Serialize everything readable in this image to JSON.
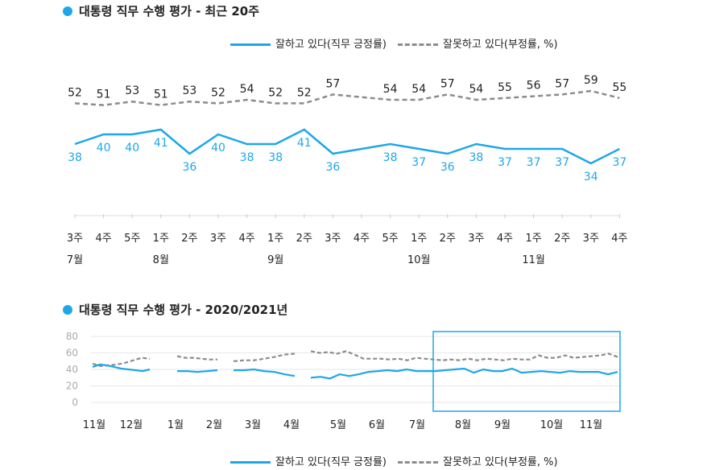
{
  "colors": {
    "approve": "#1ea7e8",
    "disapprove": "#8c8c8c",
    "highlight": "#1ea7e8",
    "grid": "#dddddd"
  },
  "chart_data": [
    {
      "type": "line",
      "title": "대통령 직무 수행 평가 - 최근 20주",
      "legend": {
        "approve": "잘하고 있다(직무 긍정률)",
        "disapprove": "잘못하고 있다(부정률, %)"
      },
      "categories": [
        "3주",
        "4주",
        "5주",
        "1주",
        "2주",
        "3주",
        "4주",
        "1주",
        "2주",
        "3주",
        "4주",
        "5주",
        "1주",
        "2주",
        "3주",
        "4주",
        "1주",
        "2주",
        "3주",
        "4주"
      ],
      "months": [
        {
          "label": "7월",
          "index": 0
        },
        {
          "label": "8월",
          "index": 3
        },
        {
          "label": "9월",
          "index": 7
        },
        {
          "label": "10월",
          "index": 12
        },
        {
          "label": "11월",
          "index": 16
        }
      ],
      "series": [
        {
          "name": "잘하고 있다(직무 긍정률)",
          "values": [
            38,
            40,
            40,
            41,
            36,
            40,
            38,
            38,
            41,
            36,
            null,
            38,
            37,
            36,
            38,
            37,
            37,
            37,
            34,
            37
          ]
        },
        {
          "name": "잘못하고 있다(부정률, %)",
          "values": [
            52,
            51,
            53,
            51,
            53,
            52,
            54,
            52,
            52,
            57,
            null,
            54,
            54,
            57,
            54,
            55,
            56,
            57,
            59,
            55
          ]
        }
      ]
    },
    {
      "type": "line",
      "title": "대통령 직무 수행 평가 - 2020/2021년",
      "legend": {
        "approve": "잘하고 있다(직무 긍정률)",
        "disapprove": "잘못하고 있다(부정률, %)"
      },
      "ylim": [
        0,
        80
      ],
      "yticks": [
        0,
        20,
        40,
        60,
        80
      ],
      "months": [
        "11월",
        "12월",
        "1월",
        "2월",
        "3월",
        "4월",
        "5월",
        "6월",
        "7월",
        "8월",
        "9월",
        "10월",
        "11월"
      ],
      "series": [
        {
          "name": "잘하고 있다(직무 긍정률)",
          "segments": [
            [
              43,
              46,
              45,
              43,
              41,
              40,
              39,
              38,
              40
            ],
            [
              38,
              38,
              37,
              38,
              39
            ],
            [
              39,
              39,
              40,
              38,
              37,
              34,
              32
            ],
            [
              30,
              31,
              29,
              34,
              32,
              34,
              37,
              38,
              39,
              38,
              40,
              38,
              38,
              38,
              39,
              40,
              41,
              36,
              40,
              38,
              38,
              41,
              36,
              37,
              38,
              37,
              36,
              38,
              37,
              37,
              37,
              34,
              37
            ]
          ]
        },
        {
          "name": "잘못하고 있다(부정률, %)",
          "segments": [
            [
              47,
              44,
              45,
              46,
              48,
              51,
              54,
              53
            ],
            [
              56,
              54,
              54,
              53,
              52,
              52
            ],
            [
              50,
              51,
              51,
              53,
              55,
              58,
              59
            ],
            [
              62,
              60,
              61,
              59,
              62,
              58,
              53,
              53,
              53,
              52,
              53,
              51,
              54,
              53,
              52,
              51,
              52,
              51,
              53,
              51,
              53,
              52,
              51,
              53,
              52,
              52,
              57,
              54,
              54,
              57,
              54,
              55,
              56,
              57,
              59,
              55
            ]
          ]
        }
      ]
    }
  ]
}
